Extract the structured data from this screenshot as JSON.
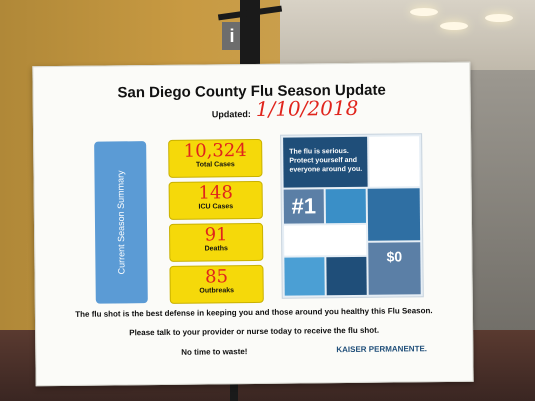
{
  "board": {
    "title": "San Diego County Flu Season Update",
    "updated_label": "Updated:",
    "updated_date": "1/10/2018"
  },
  "summary_label": "Current Season Summary",
  "stats": [
    {
      "value": "10,324",
      "label": "Total Cases"
    },
    {
      "value": "148",
      "label": "ICU Cases"
    },
    {
      "value": "91",
      "label": "Deaths"
    },
    {
      "value": "85",
      "label": "Outbreaks"
    }
  ],
  "poster": {
    "headline": "The flu is serious. Protect yourself and everyone around you.",
    "number_one": "#1",
    "zero": "$0"
  },
  "footer": {
    "line1": "The flu shot is the best defense in keeping you and those around you healthy this Flu Season.",
    "line2": "Please talk to your provider or nurse today to receive the flu shot.",
    "line3": "No time to waste!",
    "logo": "KAISER PERMANENTE."
  },
  "colors": {
    "summary_blue": "#5b9bd5",
    "stat_yellow": "#f5d90a",
    "handwriting_red": "#e0241c",
    "kp_blue": "#1f4e79"
  }
}
